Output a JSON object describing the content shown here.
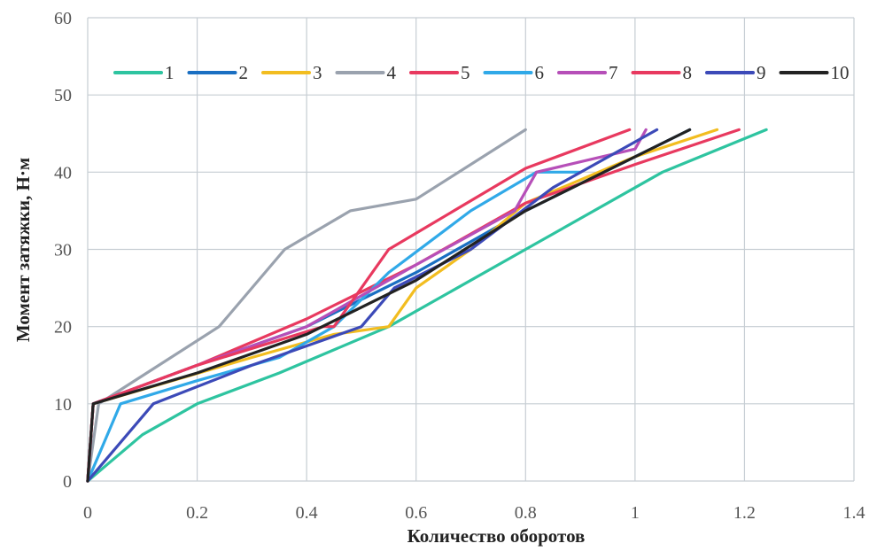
{
  "chart_data": {
    "type": "line",
    "title": "",
    "xlabel": "Количество оборотов",
    "ylabel": "Момент затяжки, Н·м",
    "xlim": [
      0,
      1.4
    ],
    "ylim": [
      0,
      60
    ],
    "x_ticks": [
      "0",
      "0.2",
      "0.4",
      "0.6",
      "0.8",
      "1",
      "1.2",
      "1.4"
    ],
    "y_ticks": [
      "0",
      "10",
      "20",
      "30",
      "40",
      "50",
      "60"
    ],
    "grid": true,
    "legend_position": "top",
    "series": [
      {
        "name": "1",
        "color": "#2ec4a0",
        "x": [
          0,
          0.1,
          0.2,
          0.35,
          0.55,
          0.8,
          1.05,
          1.24
        ],
        "y": [
          0,
          6,
          10,
          14,
          20,
          30,
          40,
          45.5
        ]
      },
      {
        "name": "2",
        "color": "#1a6fc2",
        "x": [
          0,
          0.01,
          0.2,
          0.4,
          0.6,
          0.8,
          1.0,
          1.1
        ],
        "y": [
          0,
          10,
          15,
          20,
          27,
          35,
          42,
          45.5
        ]
      },
      {
        "name": "3",
        "color": "#f2bd20",
        "x": [
          0,
          0.01,
          0.3,
          0.45,
          0.55,
          0.6,
          0.7,
          0.8,
          1.0,
          1.15
        ],
        "y": [
          0,
          10,
          16,
          19,
          20,
          25,
          30,
          36,
          42,
          45.5
        ]
      },
      {
        "name": "4",
        "color": "#9aa2ae",
        "x": [
          0,
          0.02,
          0.24,
          0.36,
          0.48,
          0.6,
          0.8
        ],
        "y": [
          0,
          10,
          20,
          30,
          35,
          36.5,
          45.5
        ]
      },
      {
        "name": "5",
        "color": "#e8395f",
        "x": [
          0,
          0.01,
          0.2,
          0.4,
          0.6,
          0.8,
          1.0,
          1.19
        ],
        "y": [
          0,
          10,
          15,
          21,
          28,
          36,
          41,
          45.5
        ]
      },
      {
        "name": "6",
        "color": "#30a9e8",
        "x": [
          0,
          0.06,
          0.2,
          0.35,
          0.45,
          0.55,
          0.7,
          0.82,
          0.9
        ],
        "y": [
          0,
          10,
          13,
          16,
          20,
          27,
          35,
          40,
          40
        ]
      },
      {
        "name": "7",
        "color": "#b64fb8",
        "x": [
          0,
          0.01,
          0.2,
          0.4,
          0.6,
          0.78,
          0.82,
          1.0,
          1.02
        ],
        "y": [
          0,
          10,
          15,
          20,
          28,
          35,
          40,
          43,
          45.5
        ]
      },
      {
        "name": "8",
        "color": "#e8395f",
        "x": [
          0,
          0.01,
          0.2,
          0.43,
          0.45,
          0.55,
          0.8,
          0.99
        ],
        "y": [
          0,
          10,
          15,
          20,
          20,
          30,
          40.5,
          45.5
        ]
      },
      {
        "name": "9",
        "color": "#3c4ab8",
        "x": [
          0,
          0.12,
          0.3,
          0.5,
          0.56,
          0.7,
          0.85,
          1.04
        ],
        "y": [
          0,
          10,
          15,
          20,
          25,
          30,
          38,
          45.5
        ]
      },
      {
        "name": "10",
        "color": "#222222",
        "x": [
          0,
          0.01,
          0.2,
          0.4,
          0.6,
          0.8,
          1.0,
          1.1
        ],
        "y": [
          0,
          10,
          14,
          19,
          26,
          35,
          42,
          45.5
        ]
      }
    ]
  }
}
